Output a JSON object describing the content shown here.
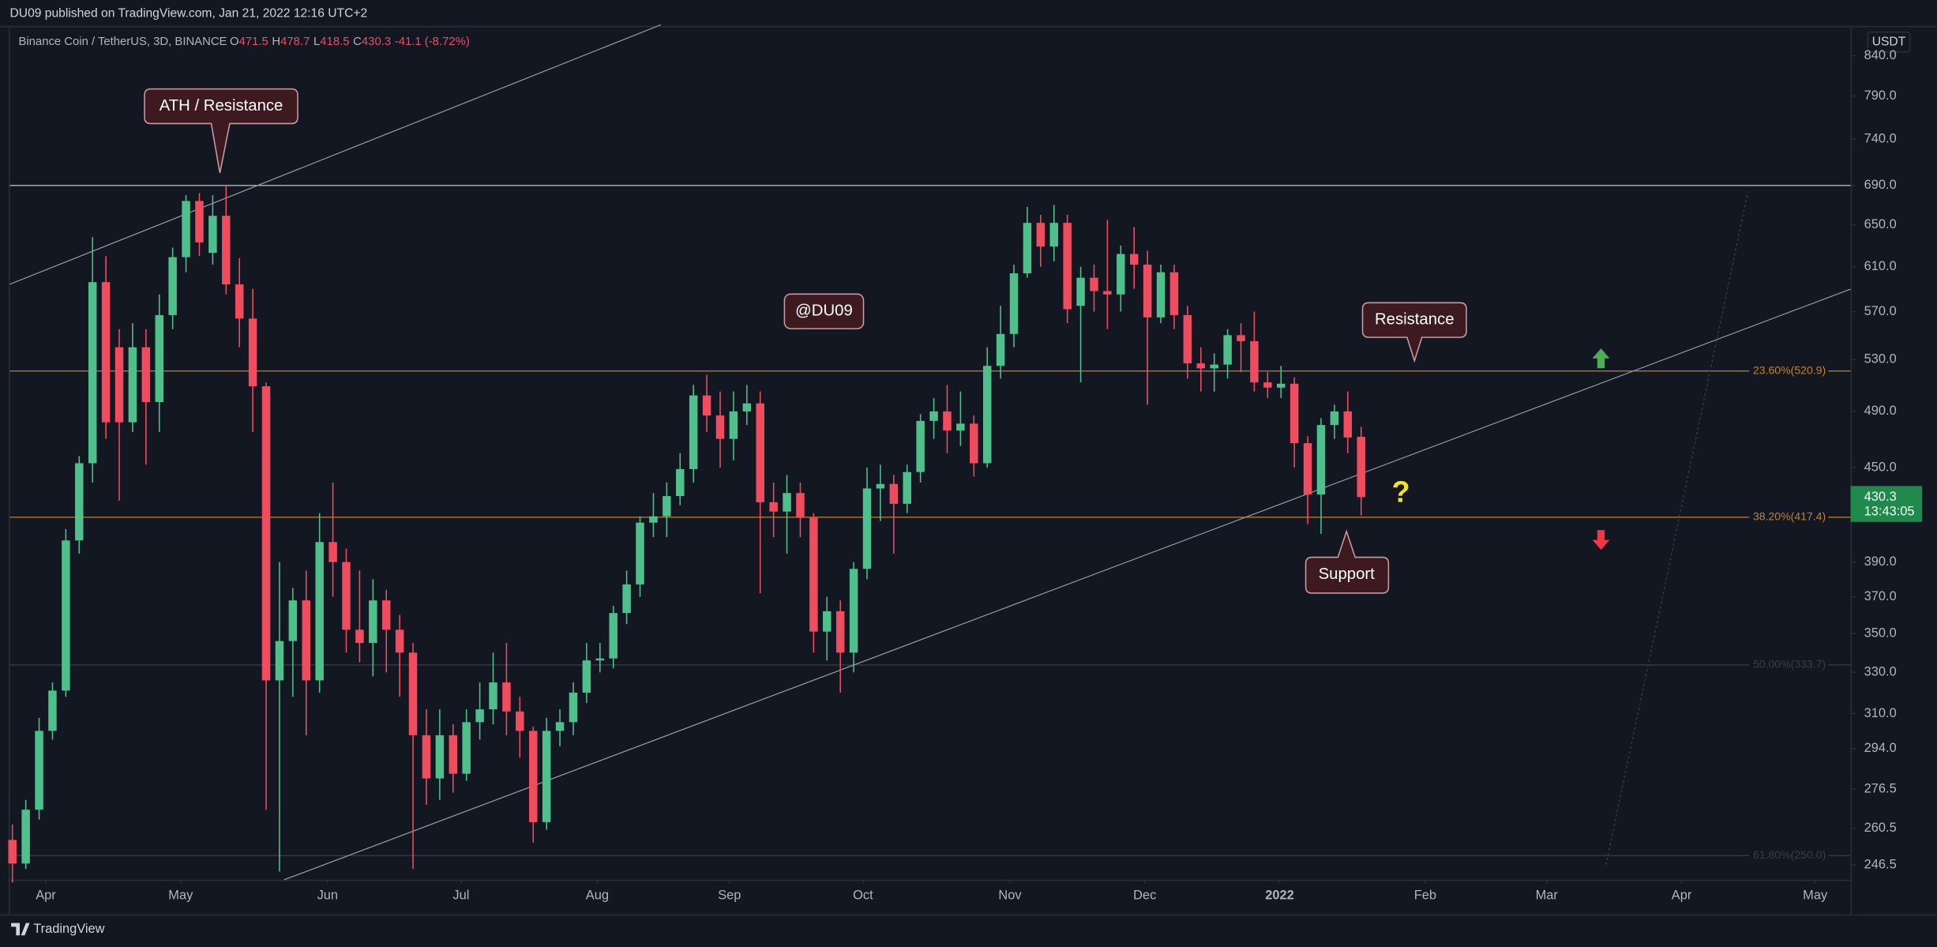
{
  "header": {
    "published": "DU09 published on TradingView.com, Jan 21, 2022 12:16 UTC+2"
  },
  "footer": {
    "brand": "TradingView"
  },
  "annotations": {
    "ath": "ATH / Resistance",
    "author": "@DU09",
    "resistance": "Resistance",
    "support": "Support",
    "question": "?"
  },
  "chart_data": {
    "type": "candlestick",
    "symbol": "Binance Coin / TetherUS, 3D, BINANCE",
    "ohlc_legend": [
      {
        "key": "O",
        "value": "471.5"
      },
      {
        "key": "H",
        "value": "478.7"
      },
      {
        "key": "L",
        "value": "418.5"
      },
      {
        "key": "C",
        "value": "430.3"
      }
    ],
    "change": "-41.1 (-8.72%)",
    "currency": "USDT",
    "up_color": "#4fbf8b",
    "down_color": "#ef4d5f",
    "log_scale": true,
    "grid": false,
    "open": [
      256,
      247,
      268,
      302,
      321,
      403,
      453,
      596,
      540,
      482,
      540,
      497,
      567,
      619,
      674,
      623,
      659,
      594,
      564,
      509,
      326,
      346,
      368,
      326,
      402,
      390,
      352,
      345,
      368,
      352,
      340,
      300,
      281,
      300,
      283,
      306,
      312,
      325,
      311,
      302,
      263,
      302,
      306,
      320,
      336,
      337,
      361,
      377,
      414,
      418,
      431,
      449,
      502,
      487,
      470,
      490,
      496,
      427,
      421,
      433,
      417,
      351,
      362,
      340,
      386,
      436,
      439,
      426,
      447,
      483,
      490,
      476,
      481,
      453,
      525,
      551,
      604,
      652,
      629,
      652,
      575,
      600,
      588,
      585,
      622,
      612,
      565,
      605,
      567,
      527,
      523,
      526,
      550,
      545,
      512,
      508,
      511,
      467,
      432,
      480,
      490,
      471.5
    ],
    "high": [
      262,
      272,
      308,
      325,
      410,
      458,
      638,
      620,
      555,
      560,
      555,
      585,
      628,
      680,
      682,
      680,
      690,
      618,
      590,
      512,
      390,
      375,
      385,
      420,
      440,
      398,
      385,
      380,
      374,
      360,
      345,
      312,
      312,
      305,
      312,
      325,
      340,
      345,
      318,
      304,
      308,
      312,
      325,
      345,
      345,
      365,
      385,
      418,
      433,
      440,
      460,
      510,
      518,
      505,
      505,
      510,
      505,
      440,
      445,
      440,
      420,
      370,
      368,
      390,
      450,
      452,
      445,
      452,
      488,
      500,
      510,
      505,
      487,
      540,
      575,
      612,
      668,
      660,
      670,
      660,
      610,
      612,
      655,
      630,
      648,
      625,
      612,
      612,
      575,
      540,
      535,
      555,
      560,
      570,
      520,
      525,
      516,
      472,
      485,
      495,
      505,
      478.7
    ],
    "low": [
      240,
      245,
      264,
      298,
      318,
      395,
      440,
      470,
      428,
      475,
      452,
      475,
      555,
      605,
      620,
      612,
      585,
      540,
      475,
      268,
      244,
      318,
      300,
      320,
      370,
      340,
      335,
      328,
      330,
      318,
      245,
      270,
      272,
      275,
      280,
      298,
      305,
      300,
      290,
      255,
      260,
      295,
      300,
      315,
      330,
      332,
      355,
      370,
      405,
      405,
      425,
      440,
      475,
      450,
      455,
      480,
      372,
      405,
      395,
      405,
      340,
      336,
      320,
      330,
      380,
      415,
      395,
      420,
      440,
      470,
      460,
      465,
      444,
      450,
      515,
      540,
      600,
      610,
      615,
      560,
      512,
      570,
      555,
      570,
      590,
      495,
      560,
      555,
      515,
      505,
      505,
      515,
      520,
      505,
      500,
      500,
      450,
      413,
      407,
      470,
      460,
      418.5
    ],
    "close": [
      247,
      268,
      302,
      321,
      403,
      453,
      596,
      482,
      482,
      540,
      497,
      567,
      619,
      674,
      633,
      659,
      594,
      564,
      509,
      326,
      346,
      368,
      326,
      402,
      390,
      352,
      345,
      368,
      352,
      340,
      300,
      281,
      300,
      283,
      306,
      312,
      325,
      311,
      302,
      263,
      302,
      306,
      320,
      336,
      337,
      361,
      377,
      414,
      418,
      431,
      449,
      502,
      487,
      470,
      490,
      496,
      427,
      421,
      433,
      417,
      351,
      362,
      340,
      386,
      436,
      439,
      426,
      447,
      483,
      490,
      476,
      481,
      453,
      525,
      551,
      604,
      652,
      629,
      652,
      572,
      600,
      588,
      585,
      622,
      612,
      565,
      605,
      567,
      527,
      523,
      526,
      550,
      545,
      512,
      508,
      511,
      467,
      432,
      480,
      490,
      471,
      430.3
    ],
    "xlim": [
      -0.19,
      137.65
    ],
    "xticks": [
      {
        "value": 2.5,
        "label": "Apr"
      },
      {
        "value": 12.6,
        "label": "May"
      },
      {
        "value": 23.6,
        "label": "Jun"
      },
      {
        "value": 33.6,
        "label": "Jul"
      },
      {
        "value": 43.8,
        "label": "Aug"
      },
      {
        "value": 53.7,
        "label": "Sep"
      },
      {
        "value": 63.7,
        "label": "Oct"
      },
      {
        "value": 74.7,
        "label": "Nov"
      },
      {
        "value": 84.8,
        "label": "Dec"
      },
      {
        "value": 94.9,
        "label": "2022"
      },
      {
        "value": 105.8,
        "label": "Feb"
      },
      {
        "value": 114.9,
        "label": "Mar"
      },
      {
        "value": 125,
        "label": "Apr"
      },
      {
        "value": 135,
        "label": "May"
      }
    ],
    "ylim": [
      241,
      877
    ],
    "yticks": [
      246.5,
      260.5,
      276.5,
      {
        "value": 294,
        "label": "294.0"
      },
      {
        "value": 310,
        "label": "310.0"
      },
      {
        "value": 330,
        "label": "330.0"
      },
      {
        "value": 350,
        "label": "350.0"
      },
      {
        "value": 370,
        "label": "370.0"
      },
      {
        "value": 390,
        "label": "390.0"
      },
      {
        "value": 450,
        "label": "450.0"
      },
      {
        "value": 490,
        "label": "490.0"
      },
      {
        "value": 530,
        "label": "530.0"
      },
      {
        "value": 570,
        "label": "570.0"
      },
      {
        "value": 610,
        "label": "610.0"
      },
      {
        "value": 650,
        "label": "650.0"
      },
      {
        "value": 690,
        "label": "690.0"
      },
      {
        "value": 740,
        "label": "740.0"
      },
      {
        "value": 790,
        "label": "790.0"
      },
      {
        "value": 840,
        "label": "840.0"
      }
    ],
    "hlines": [
      {
        "value": 690,
        "color": "#b2b5be"
      }
    ],
    "fib_levels": [
      {
        "value": 520.9,
        "label": "23.60%(520.9)",
        "color": "#c7812c"
      },
      {
        "value": 417.4,
        "label": "38.20%(417.4)",
        "color": "#c7812c"
      },
      {
        "value": 333.7,
        "label": "50.00%(333.7)",
        "color": "#3a3e4a"
      },
      {
        "value": 250,
        "label": "61.80%(250.0)",
        "color": "#3a3e4a"
      }
    ],
    "last_price": 430.3,
    "countdown": "13:43:05",
    "last_color": "#1f8a4c"
  }
}
